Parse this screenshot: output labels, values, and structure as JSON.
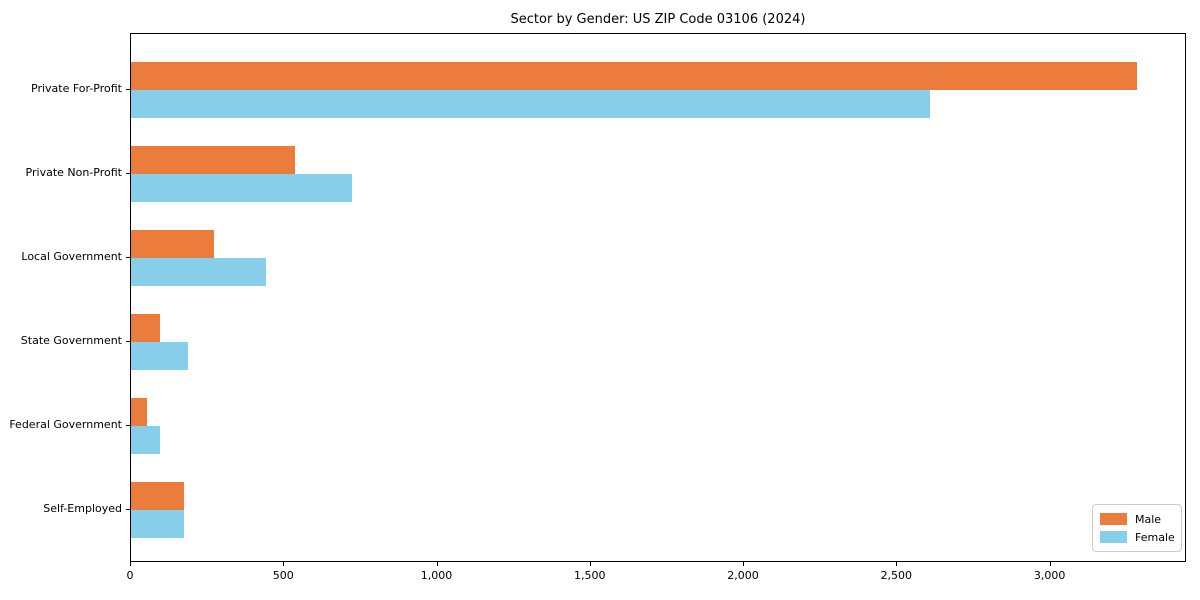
{
  "chart_data": {
    "type": "bar",
    "orientation": "horizontal",
    "title": "Sector by Gender: US ZIP Code 03106 (2024)",
    "categories": [
      "Private For-Profit",
      "Private Non-Profit",
      "Local Government",
      "State Government",
      "Federal Government",
      "Self-Employed"
    ],
    "series": [
      {
        "name": "Male",
        "color": "#ec7c3c",
        "values": [
          3281,
          536,
          272,
          94,
          51,
          172
        ]
      },
      {
        "name": "Female",
        "color": "#87ceeb",
        "values": [
          2608,
          720,
          439,
          187,
          94,
          172
        ]
      }
    ],
    "xlabel": "",
    "ylabel": "",
    "xlim": [
      0,
      3445
    ],
    "x_ticks": [
      {
        "value": 0,
        "label": "0"
      },
      {
        "value": 500,
        "label": "500"
      },
      {
        "value": 1000,
        "label": "1,000"
      },
      {
        "value": 1500,
        "label": "1,500"
      },
      {
        "value": 2000,
        "label": "2,000"
      },
      {
        "value": 2500,
        "label": "2,500"
      },
      {
        "value": 3000,
        "label": "3,000"
      }
    ],
    "grid": false,
    "legend_position": "lower right",
    "background_color": "#ffffff",
    "spine_color": "#000000"
  }
}
